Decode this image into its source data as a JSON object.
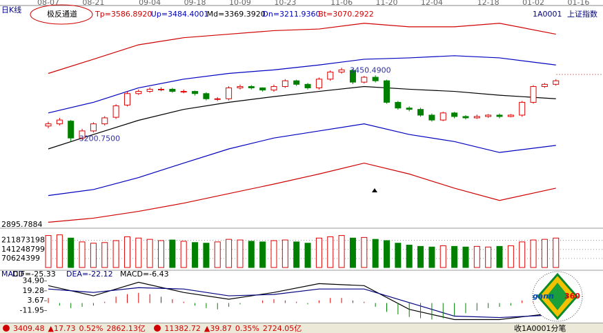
{
  "header": {
    "period": "日K线",
    "indicator": "极反通道",
    "code": "1A0001",
    "name": "上证指数"
  },
  "chart_data": [
    {
      "type": "candlestick",
      "date_ticks": [
        {
          "index": 0,
          "label": "08-07"
        },
        {
          "index": 4,
          "label": "08-21"
        },
        {
          "index": 9,
          "label": "09-04"
        },
        {
          "index": 13,
          "label": "09-18"
        },
        {
          "index": 17,
          "label": "10-09"
        },
        {
          "index": 21,
          "label": "10-23"
        },
        {
          "index": 26,
          "label": "11-06"
        },
        {
          "index": 30,
          "label": "11-20"
        },
        {
          "index": 34,
          "label": "12-04"
        },
        {
          "index": 39,
          "label": "12-18"
        },
        {
          "index": 43,
          "label": "01-02"
        },
        {
          "index": 47,
          "label": "01-16"
        }
      ],
      "open": [
        3258,
        3266,
        3276,
        3214,
        3240,
        3266,
        3290,
        3335,
        3377,
        3385,
        3393,
        3393,
        3385,
        3385,
        3377,
        3358,
        3358,
        3398,
        3403,
        3398,
        3390,
        3403,
        3424,
        3411,
        3398,
        3430,
        3456,
        3462,
        3419,
        3437,
        3424,
        3345,
        3324,
        3319,
        3298,
        3280,
        3306,
        3293,
        3288,
        3293,
        3298,
        3293,
        3298,
        3345,
        3403,
        3411
      ],
      "high": [
        3274,
        3288,
        3280,
        3248,
        3272,
        3294,
        3338,
        3385,
        3392,
        3400,
        3400,
        3398,
        3392,
        3388,
        3382,
        3364,
        3404,
        3410,
        3408,
        3400,
        3410,
        3430,
        3428,
        3416,
        3436,
        3462,
        3472,
        3468,
        3442,
        3444,
        3428,
        3350,
        3330,
        3325,
        3304,
        3310,
        3310,
        3298,
        3300,
        3302,
        3304,
        3302,
        3350,
        3408,
        3416,
        3430
      ],
      "low": [
        3250,
        3260,
        3200.75,
        3208,
        3234,
        3260,
        3284,
        3330,
        3372,
        3380,
        3386,
        3380,
        3378,
        3370,
        3352,
        3350,
        3352,
        3392,
        3392,
        3384,
        3384,
        3398,
        3405,
        3392,
        3392,
        3424,
        3450,
        3412,
        3414,
        3418,
        3340,
        3318,
        3312,
        3292,
        3274,
        3276,
        3286,
        3282,
        3284,
        3288,
        3286,
        3290,
        3292,
        3340,
        3398,
        3406
      ],
      "close": [
        3266,
        3280,
        3214,
        3240,
        3266,
        3288,
        3332,
        3377,
        3385,
        3393,
        3393,
        3385,
        3385,
        3377,
        3358,
        3358,
        3398,
        3403,
        3398,
        3390,
        3403,
        3424,
        3411,
        3398,
        3430,
        3456,
        3464,
        3419,
        3437,
        3424,
        3345,
        3324,
        3319,
        3298,
        3280,
        3306,
        3293,
        3288,
        3293,
        3298,
        3293,
        3298,
        3345,
        3403,
        3411,
        3424
      ],
      "up_color": "#e00000",
      "down_color": "#008000",
      "series": [
        {
          "name": "Tp=3586.8920",
          "color": "#d00000",
          "x": [
            0,
            4,
            8,
            12,
            16,
            20,
            24,
            28,
            32,
            36,
            40,
            45
          ],
          "values": [
            3451,
            3503,
            3556,
            3582,
            3595,
            3608,
            3614,
            3635,
            3622,
            3622,
            3635,
            3595
          ]
        },
        {
          "name": "Up=3484.4001",
          "color": "#0000c0",
          "x": [
            0,
            4,
            8,
            12,
            16,
            20,
            24,
            28,
            32,
            36,
            40,
            45
          ],
          "values": [
            3306,
            3345,
            3398,
            3430,
            3451,
            3464,
            3482,
            3503,
            3508,
            3516,
            3508,
            3482
          ]
        },
        {
          "name": "Md=3369.3920",
          "color": "#000000",
          "x": [
            0,
            4,
            8,
            12,
            16,
            20,
            24,
            28,
            32,
            36,
            40,
            45
          ],
          "values": [
            3174,
            3227,
            3279,
            3319,
            3345,
            3366,
            3385,
            3403,
            3393,
            3385,
            3371,
            3358
          ]
        },
        {
          "name": "Dn=3211.9360",
          "color": "#0000c0",
          "x": [
            0,
            4,
            8,
            12,
            16,
            20,
            24,
            28,
            32,
            36,
            40,
            45
          ],
          "values": [
            3003,
            3025,
            3069,
            3122,
            3174,
            3214,
            3240,
            3266,
            3227,
            3201,
            3161,
            3187
          ]
        },
        {
          "name": "Bt=3070.2922",
          "color": "#d00000",
          "x": [
            0,
            4,
            8,
            12,
            16,
            20,
            24,
            28,
            32,
            36,
            40,
            45
          ],
          "values": [
            2905,
            2920,
            2945,
            2975,
            3010,
            3045,
            3082,
            3122,
            3082,
            3030,
            2985,
            3030
          ]
        }
      ],
      "annotations": [
        {
          "text": "3200.7500",
          "index": 2,
          "value": 3200.75
        },
        {
          "text": "3450.4900",
          "index": 26,
          "value": 3450.49
        }
      ],
      "ylim": [
        2895.7884,
        3690
      ],
      "yticks": [
        2895.7884
      ]
    },
    {
      "type": "bar",
      "values": [
        250000000,
        255000000,
        230000000,
        200000000,
        190000000,
        195000000,
        210000000,
        240000000,
        230000000,
        220000000,
        210000000,
        215000000,
        205000000,
        195000000,
        190000000,
        200000000,
        220000000,
        215000000,
        205000000,
        200000000,
        210000000,
        215000000,
        200000000,
        190000000,
        230000000,
        240000000,
        250000000,
        230000000,
        235000000,
        220000000,
        210000000,
        190000000,
        175000000,
        165000000,
        160000000,
        170000000,
        165000000,
        160000000,
        165000000,
        160000000,
        165000000,
        170000000,
        200000000,
        215000000,
        220000000,
        230000000
      ],
      "ylim": [
        0,
        280000000
      ],
      "yticks": [
        70624399,
        141248799,
        211873198
      ],
      "grid": true
    },
    {
      "type": "macd",
      "title": "MACD",
      "series": [
        {
          "name": "DIF=-25.33",
          "color": "#000000",
          "x": [
            0,
            4,
            8,
            12,
            16,
            20,
            24,
            28,
            32,
            36,
            40,
            45
          ],
          "values": [
            27.4,
            11.4,
            32.8,
            16.7,
            6.0,
            16.7,
            30.6,
            27.4,
            -10.0,
            -26.1,
            -26.1,
            -15.4
          ]
        },
        {
          "name": "DEA=-22.12",
          "color": "#000080",
          "x": [
            0,
            4,
            8,
            12,
            16,
            20,
            24,
            28,
            32,
            36,
            40,
            45
          ],
          "values": [
            22.1,
            16.7,
            24.2,
            22.1,
            11.4,
            13.5,
            22.1,
            22.1,
            0.66,
            -20.7,
            -22.9,
            -18.6
          ]
        }
      ],
      "histogram": {
        "name": "MACD=-6.43",
        "values": [
          8,
          -4,
          -8,
          -6,
          -4,
          2,
          10,
          14,
          16,
          14,
          10,
          6,
          2,
          -4,
          -8,
          -10,
          -6,
          -2,
          0,
          4,
          6,
          4,
          2,
          -2,
          4,
          8,
          8,
          4,
          2,
          -6,
          -14,
          -18,
          -22,
          -24,
          -26,
          -24,
          -20,
          -16,
          -12,
          -8,
          -6,
          -4,
          4,
          10,
          12,
          12
        ],
        "up_color": "#e00000",
        "down_color": "#008000"
      },
      "ylim": [
        -31,
        43
      ],
      "yticks": [
        {
          "value": 34.9,
          "label": "34.90"
        },
        19.28,
        3.67,
        -11.95
      ]
    }
  ],
  "status_bar": {
    "sh": [
      "3409.48",
      "▲17.73",
      "0.52%",
      "2862.13亿"
    ],
    "sz": [
      "11382.72",
      "▲39.87",
      "0.35%",
      "2724.05亿"
    ],
    "tab": "收1A0001分笔"
  },
  "logo": {
    "word": "gann",
    "number": "360"
  }
}
